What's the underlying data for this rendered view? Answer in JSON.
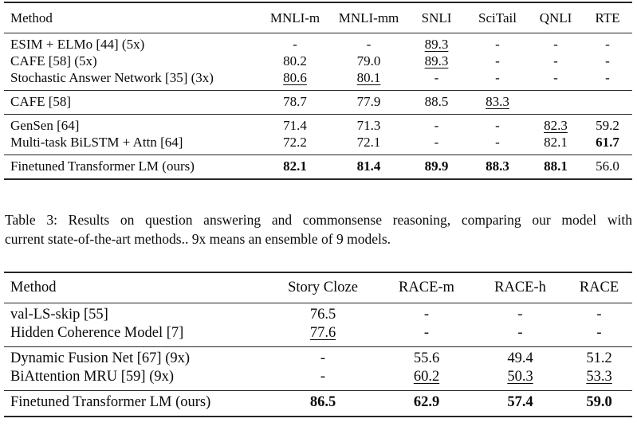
{
  "page": {
    "background": "#ffffff",
    "text_color": "#0a0a0a",
    "rule_color": "#262626"
  },
  "nli_table": {
    "columns": [
      "Method",
      "MNLI-m",
      "MNLI-mm",
      "SNLI",
      "SciTail",
      "QNLI",
      "RTE"
    ],
    "groups": [
      {
        "rows": [
          {
            "method": "ESIM + ELMo [44] (5x)",
            "cells": [
              {
                "v": "-"
              },
              {
                "v": "-"
              },
              {
                "v": "89.3",
                "s": "u"
              },
              {
                "v": "-"
              },
              {
                "v": "-"
              },
              {
                "v": "-"
              }
            ]
          },
          {
            "method": "CAFE [58] (5x)",
            "cells": [
              {
                "v": "80.2"
              },
              {
                "v": "79.0"
              },
              {
                "v": "89.3",
                "s": "u"
              },
              {
                "v": "-"
              },
              {
                "v": "-"
              },
              {
                "v": "-"
              }
            ]
          },
          {
            "method": "Stochastic Answer Network [35] (3x)",
            "cells": [
              {
                "v": "80.6",
                "s": "u"
              },
              {
                "v": "80.1",
                "s": "u"
              },
              {
                "v": "-"
              },
              {
                "v": "-"
              },
              {
                "v": "-"
              },
              {
                "v": "-"
              }
            ]
          }
        ]
      },
      {
        "rows": [
          {
            "method": "CAFE [58]",
            "cells": [
              {
                "v": "78.7"
              },
              {
                "v": "77.9"
              },
              {
                "v": "88.5"
              },
              {
                "v": "83.3",
                "s": "u"
              },
              {
                "v": ""
              },
              {
                "v": ""
              }
            ]
          }
        ]
      },
      {
        "rows": [
          {
            "method": "GenSen [64]",
            "cells": [
              {
                "v": "71.4"
              },
              {
                "v": "71.3"
              },
              {
                "v": "-"
              },
              {
                "v": "-"
              },
              {
                "v": "82.3",
                "s": "u"
              },
              {
                "v": "59.2"
              }
            ]
          },
          {
            "method": "Multi-task BiLSTM + Attn [64]",
            "cells": [
              {
                "v": "72.2"
              },
              {
                "v": "72.1"
              },
              {
                "v": "-"
              },
              {
                "v": "-"
              },
              {
                "v": "82.1"
              },
              {
                "v": "61.7",
                "s": "b"
              }
            ]
          }
        ]
      },
      {
        "rows": [
          {
            "method": "Finetuned Transformer LM (ours)",
            "cells": [
              {
                "v": "82.1",
                "s": "b"
              },
              {
                "v": "81.4",
                "s": "b"
              },
              {
                "v": "89.9",
                "s": "b"
              },
              {
                "v": "88.3",
                "s": "b"
              },
              {
                "v": "88.1",
                "s": "b"
              },
              {
                "v": "56.0"
              }
            ]
          }
        ]
      }
    ]
  },
  "caption": {
    "lines": [
      "Table 3: Results on question answering and commonsense reasoning, comparing our model with",
      "current state-of-the-art methods.. 9x means an ensemble of 9 models."
    ]
  },
  "qa_table": {
    "columns": [
      "Method",
      "Story Cloze",
      "RACE-m",
      "RACE-h",
      "RACE"
    ],
    "groups": [
      {
        "rows": [
          {
            "method": "val-LS-skip [55]",
            "cells": [
              {
                "v": "76.5"
              },
              {
                "v": "-"
              },
              {
                "v": "-"
              },
              {
                "v": "-"
              }
            ]
          },
          {
            "method": "Hidden Coherence Model [7]",
            "cells": [
              {
                "v": "77.6",
                "s": "u"
              },
              {
                "v": "-"
              },
              {
                "v": "-"
              },
              {
                "v": "-"
              }
            ]
          }
        ]
      },
      {
        "rows": [
          {
            "method": "Dynamic Fusion Net [67] (9x)",
            "cells": [
              {
                "v": "-"
              },
              {
                "v": "55.6"
              },
              {
                "v": "49.4"
              },
              {
                "v": "51.2"
              }
            ]
          },
          {
            "method": "BiAttention MRU [59] (9x)",
            "cells": [
              {
                "v": "-"
              },
              {
                "v": "60.2",
                "s": "u"
              },
              {
                "v": "50.3",
                "s": "u"
              },
              {
                "v": "53.3",
                "s": "u"
              }
            ]
          }
        ]
      },
      {
        "rows": [
          {
            "method": "Finetuned Transformer LM (ours)",
            "cells": [
              {
                "v": "86.5",
                "s": "b"
              },
              {
                "v": "62.9",
                "s": "b"
              },
              {
                "v": "57.4",
                "s": "b"
              },
              {
                "v": "59.0",
                "s": "b"
              }
            ]
          }
        ]
      }
    ]
  }
}
